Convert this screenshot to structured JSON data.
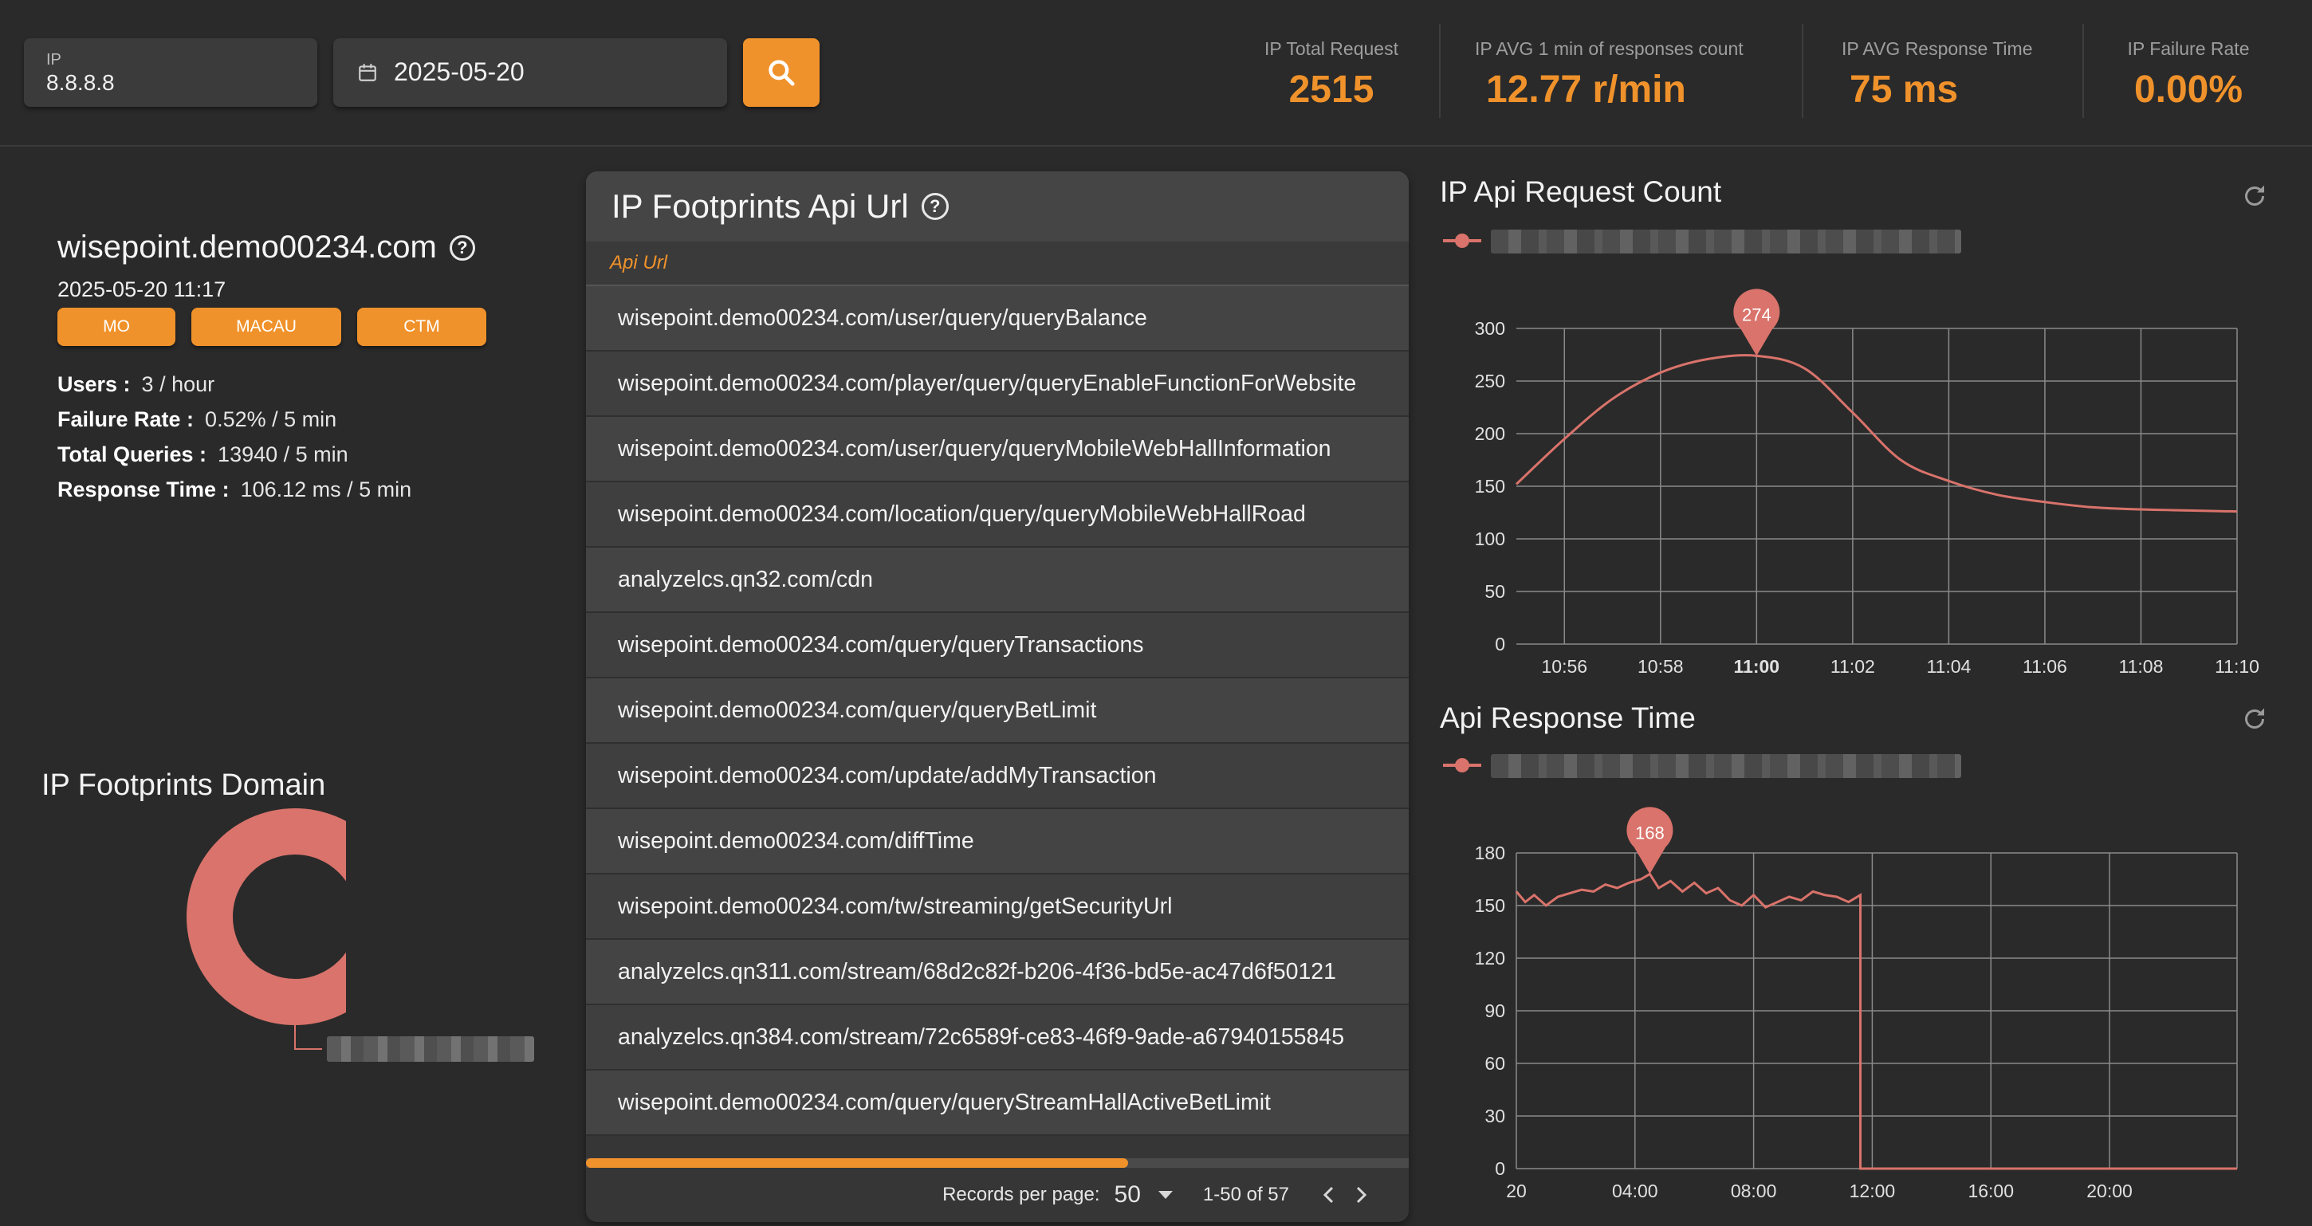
{
  "search": {
    "ip_label": "IP",
    "ip_value": "8.8.8.8",
    "date_value": "2025-05-20"
  },
  "stats": [
    {
      "label": "IP Total Request",
      "value": "2515"
    },
    {
      "label": "IP AVG 1 min of responses count",
      "value": "12.77 r/min"
    },
    {
      "label": "IP AVG Response Time",
      "value": "75 ms"
    },
    {
      "label": "IP Failure Rate",
      "value": "0.00%"
    }
  ],
  "domain": {
    "name": "wisepoint.demo00234.com",
    "timestamp": "2025-05-20 11:17",
    "tags": [
      "MO",
      "MACAU",
      "CTM"
    ],
    "metrics": [
      {
        "label": "Users :",
        "value": "3 / hour"
      },
      {
        "label": "Failure Rate :",
        "value": "0.52% / 5 min"
      },
      {
        "label": "Total Queries :",
        "value": "13940 / 5 min"
      },
      {
        "label": "Response Time :",
        "value": "106.12 ms / 5 min"
      }
    ]
  },
  "footprints_domain": {
    "title": "IP Footprints Domain",
    "color": "#d9736b"
  },
  "api_table": {
    "title": "IP Footprints Api Url",
    "column": "Api Url",
    "rows": [
      "wisepoint.demo00234.com/user/query/queryBalance",
      "wisepoint.demo00234.com/player/query/queryEnableFunctionForWebsite",
      "wisepoint.demo00234.com/user/query/queryMobileWebHallInformation",
      "wisepoint.demo00234.com/location/query/queryMobileWebHallRoad",
      "analyzelcs.qn32.com/cdn",
      "wisepoint.demo00234.com/query/queryTransactions",
      "wisepoint.demo00234.com/query/queryBetLimit",
      "wisepoint.demo00234.com/update/addMyTransaction",
      "wisepoint.demo00234.com/diffTime",
      "wisepoint.demo00234.com/tw/streaming/getSecurityUrl",
      "analyzelcs.qn311.com/stream/68d2c82f-b206-4f36-bd5e-ac47d6f50121",
      "analyzelcs.qn384.com/stream/72c6589f-ce83-46f9-9ade-a67940155845",
      "wisepoint.demo00234.com/query/queryStreamHallActiveBetLimit"
    ],
    "pager": {
      "records_label": "Records per page:",
      "records_value": "50",
      "range": "1-50 of 57"
    }
  },
  "chart_data": [
    {
      "type": "line",
      "title": "IP Api Request Count",
      "color": "#d9736b",
      "x_ticks": [
        "10:56",
        "10:58",
        "11:00",
        "11:02",
        "11:04",
        "11:06",
        "11:08",
        "11:10"
      ],
      "x_range": [
        10.9,
        11.0
      ],
      "xlim_minutes": [
        -5,
        10
      ],
      "ylim": [
        0,
        300
      ],
      "y_ticks": [
        0,
        50,
        100,
        150,
        200,
        250,
        300
      ],
      "points": [
        [
          -5,
          152
        ],
        [
          -4,
          195
        ],
        [
          -3,
          233
        ],
        [
          -2,
          258
        ],
        [
          -1,
          271
        ],
        [
          0,
          274
        ],
        [
          1,
          262
        ],
        [
          2,
          220
        ],
        [
          3,
          175
        ],
        [
          4,
          155
        ],
        [
          5,
          142
        ],
        [
          6,
          135
        ],
        [
          7,
          130
        ],
        [
          8,
          128
        ],
        [
          9,
          127
        ],
        [
          10,
          126
        ]
      ],
      "max_label": "274",
      "max_point": [
        0,
        274
      ],
      "grid": true
    },
    {
      "type": "line",
      "title": "Api Response Time",
      "color": "#d9736b",
      "x_ticks": [
        "20",
        "04:00",
        "08:00",
        "12:00",
        "16:00",
        "20:00"
      ],
      "x_tick_hours": [
        0,
        4,
        8,
        12,
        16,
        20
      ],
      "xlim_hours": [
        0,
        24.3
      ],
      "ylim": [
        0,
        180
      ],
      "y_ticks": [
        0,
        30,
        60,
        90,
        120,
        150,
        180
      ],
      "points": [
        [
          0,
          158
        ],
        [
          0.3,
          152
        ],
        [
          0.6,
          156
        ],
        [
          1,
          150
        ],
        [
          1.4,
          155
        ],
        [
          1.8,
          157
        ],
        [
          2.2,
          159
        ],
        [
          2.6,
          158
        ],
        [
          3,
          162
        ],
        [
          3.4,
          160
        ],
        [
          3.8,
          163
        ],
        [
          4.2,
          165
        ],
        [
          4.5,
          168
        ],
        [
          4.8,
          160
        ],
        [
          5.2,
          164
        ],
        [
          5.6,
          158
        ],
        [
          6,
          163
        ],
        [
          6.4,
          157
        ],
        [
          6.8,
          160
        ],
        [
          7.2,
          153
        ],
        [
          7.6,
          150
        ],
        [
          8,
          156
        ],
        [
          8.4,
          149
        ],
        [
          8.8,
          152
        ],
        [
          9.2,
          155
        ],
        [
          9.6,
          153
        ],
        [
          10,
          158
        ],
        [
          10.4,
          156
        ],
        [
          10.8,
          155
        ],
        [
          11.2,
          152
        ],
        [
          11.6,
          156
        ],
        [
          11.6,
          0
        ],
        [
          24.3,
          0
        ]
      ],
      "max_label": "168",
      "max_point": [
        4.5,
        168
      ],
      "grid": true
    }
  ]
}
